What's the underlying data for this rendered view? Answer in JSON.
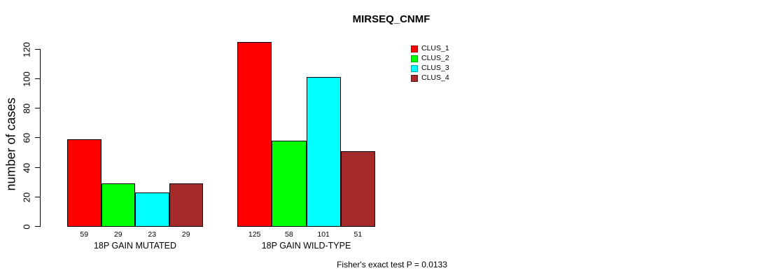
{
  "chart_data": {
    "type": "bar",
    "title": "MIRSEQ_CNMF",
    "ylabel": "number of cases",
    "ylim": [
      0,
      120
    ],
    "yticks": [
      0,
      20,
      40,
      60,
      80,
      100,
      120
    ],
    "grid": false,
    "legend_position": "top-right",
    "categories": [
      "18P GAIN MUTATED",
      "18P GAIN WILD-TYPE"
    ],
    "series": [
      {
        "name": "CLUS_1",
        "color": "#FF0000",
        "values": [
          59,
          125
        ]
      },
      {
        "name": "CLUS_2",
        "color": "#00FF00",
        "values": [
          29,
          58
        ]
      },
      {
        "name": "CLUS_3",
        "color": "#00FFFF",
        "values": [
          23,
          101
        ]
      },
      {
        "name": "CLUS_4",
        "color": "#A52A2A",
        "values": [
          29,
          51
        ]
      }
    ],
    "annotation": "Fisher's exact test P = 0.0133"
  },
  "colors": {
    "background": "#FFFFFF",
    "axis": "#000000",
    "bar_border": "#000000",
    "text": "#000000"
  }
}
